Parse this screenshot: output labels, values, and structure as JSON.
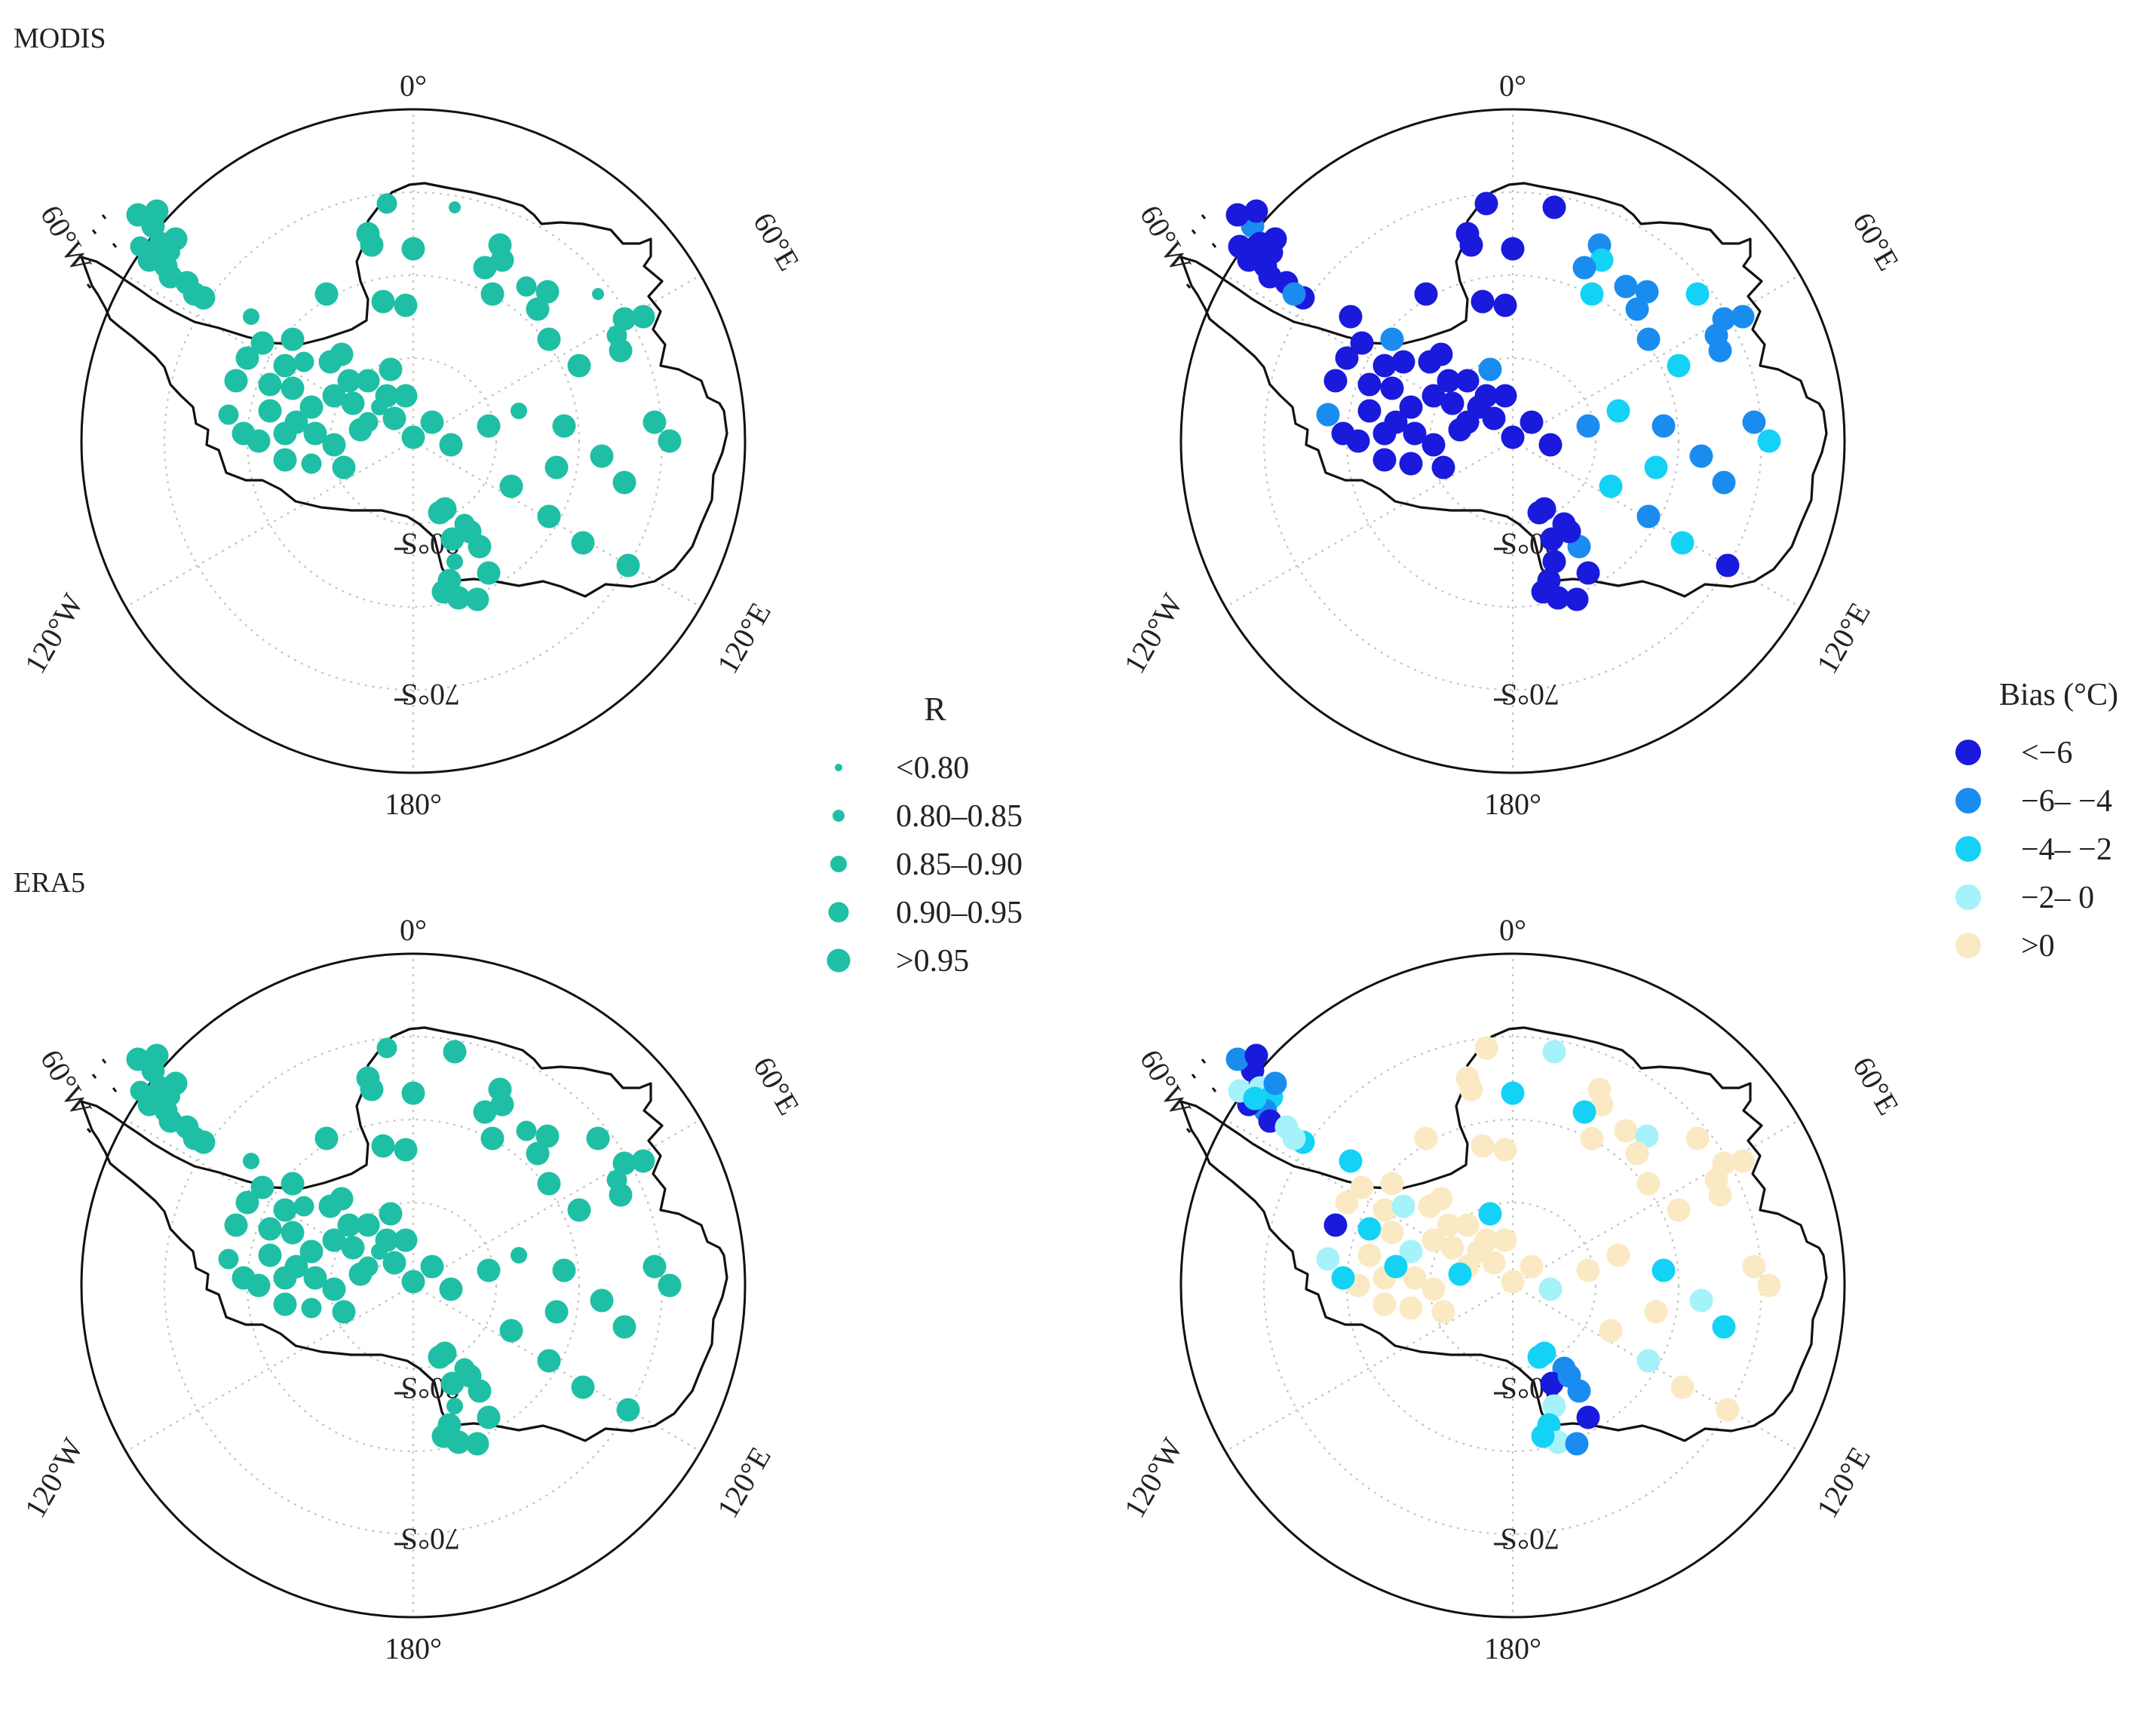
{
  "panels": [
    {
      "id": "modis-r",
      "label": "MODIS",
      "variable": "R"
    },
    {
      "id": "modis-bias",
      "label": "",
      "variable": "Bias"
    },
    {
      "id": "era5-r",
      "label": "ERA5",
      "variable": "R"
    },
    {
      "id": "era5-bias",
      "label": "",
      "variable": "Bias"
    }
  ],
  "map_labels": {
    "lon_0": "0°",
    "lon_60e": "60°E",
    "lon_120e": "120°E",
    "lon_180": "180°",
    "lon_120w": "120°W",
    "lon_60w": "60°W",
    "lat_70s": "70°S",
    "lat_80s": "80°S"
  },
  "legend_r": {
    "title": "R",
    "color": "#1fbfa5",
    "entries": [
      {
        "label": "<0.80",
        "size": 1
      },
      {
        "label": "0.80–0.85",
        "size": 2
      },
      {
        "label": "0.85–0.90",
        "size": 3
      },
      {
        "label": "0.90–0.95",
        "size": 4
      },
      {
        "label": ">0.95",
        "size": 5
      }
    ]
  },
  "legend_bias": {
    "title": "Bias (°C)",
    "entries": [
      {
        "label": "<−6",
        "color": "#1a1adc"
      },
      {
        "label": "−6– −4",
        "color": "#1a8cf0"
      },
      {
        "label": "−4– −2",
        "color": "#14d2f5"
      },
      {
        "label": "−2– 0",
        "color": "#a5f2fa"
      },
      {
        "label": ">0",
        "color": "#fbe9c3"
      }
    ]
  }
}
